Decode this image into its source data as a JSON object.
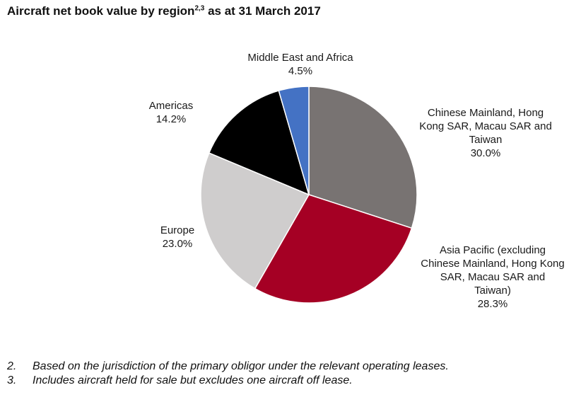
{
  "title": {
    "text": "Aircraft net book value by region",
    "superscript": "2,3",
    "suffix": " as at 31 March 2017"
  },
  "chart_data": {
    "type": "pie",
    "title": "Aircraft net book value by region as at 31 March 2017",
    "start_angle_deg": 0,
    "direction": "clockwise",
    "slices": [
      {
        "label_lines": [
          "Chinese Mainland, Hong",
          "Kong SAR, Macau SAR and",
          "Taiwan"
        ],
        "value": 30.0,
        "value_label": "30.0%",
        "color": "#787372"
      },
      {
        "label_lines": [
          "Asia Pacific (excluding",
          "Chinese Mainland, Hong Kong",
          "SAR, Macau SAR and",
          "Taiwan)"
        ],
        "value": 28.3,
        "value_label": "28.3%",
        "color": "#a50024"
      },
      {
        "label_lines": [
          "Europe"
        ],
        "value": 23.0,
        "value_label": "23.0%",
        "color": "#cfcdcd"
      },
      {
        "label_lines": [
          "Americas"
        ],
        "value": 14.2,
        "value_label": "14.2%",
        "color": "#000000"
      },
      {
        "label_lines": [
          "Middle East and Africa"
        ],
        "value": 4.5,
        "value_label": "4.5%",
        "color": "#4472c4"
      }
    ]
  },
  "footnotes": [
    {
      "num": "2.",
      "text": "Based on the jurisdiction of the primary obligor under the relevant operating leases."
    },
    {
      "num": "3.",
      "text": "Includes aircraft held for sale but excludes one aircraft off lease."
    }
  ]
}
